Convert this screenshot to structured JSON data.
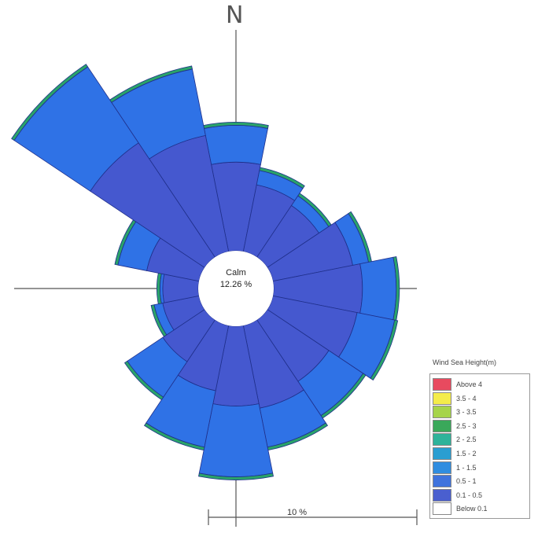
{
  "chart_data": {
    "type": "wind-rose",
    "north_label": "N",
    "calm": {
      "label": "Calm",
      "value": "12.26 %"
    },
    "scale_label": "10 %",
    "legend": {
      "title": "Wind Sea Height(m)",
      "bins": [
        {
          "label": "Above 4",
          "color": "#e84a5f"
        },
        {
          "label": "3.5 - 4",
          "color": "#f4ec4a"
        },
        {
          "label": "3 - 3.5",
          "color": "#a6d44a"
        },
        {
          "label": "2.5 - 3",
          "color": "#3aa85a"
        },
        {
          "label": "2 - 2.5",
          "color": "#2eb39a"
        },
        {
          "label": "1.5 - 2",
          "color": "#2a9ed1"
        },
        {
          "label": "1 - 1.5",
          "color": "#2f8de0"
        },
        {
          "label": "0.5 - 1",
          "color": "#3f73dd"
        },
        {
          "label": "0.1 - 0.5",
          "color": "#4a5fcf"
        },
        {
          "label": "Below 0.1",
          "color": "#ffffff"
        }
      ]
    },
    "direction_unit": "degrees_from_north",
    "sectors": [
      {
        "direction": 0,
        "total": 8.7,
        "inner": 6.0
      },
      {
        "direction": 22.5,
        "total": 5.8,
        "inner": 4.6
      },
      {
        "direction": 45,
        "total": 5.2,
        "inner": 4.2
      },
      {
        "direction": 67.5,
        "total": 6.8,
        "inner": 5.5
      },
      {
        "direction": 90,
        "total": 8.5,
        "inner": 6.0
      },
      {
        "direction": 112.5,
        "total": 8.6,
        "inner": 5.8
      },
      {
        "direction": 135,
        "total": 8.0,
        "inner": 5.0
      },
      {
        "direction": 157.5,
        "total": 8.6,
        "inner": 5.7
      },
      {
        "direction": 180,
        "total": 10.4,
        "inner": 5.4
      },
      {
        "direction": 202.5,
        "total": 8.6,
        "inner": 4.5
      },
      {
        "direction": 225,
        "total": 6.5,
        "inner": 3.4
      },
      {
        "direction": 247.5,
        "total": 3.3,
        "inner": 2.5
      },
      {
        "direction": 270,
        "total": 2.8,
        "inner": 2.4
      },
      {
        "direction": 292.5,
        "total": 5.8,
        "inner": 3.6
      },
      {
        "direction": 315,
        "total": 15.7,
        "inner": 9.3
      },
      {
        "direction": 337.5,
        "total": 12.8,
        "inner": 8.0
      }
    ],
    "colors": {
      "inner": "#4558cf",
      "outer": "#2f72e6",
      "edge": "#2aa36a",
      "sector_line": "#1f2f8a",
      "axis": "#555555"
    }
  }
}
